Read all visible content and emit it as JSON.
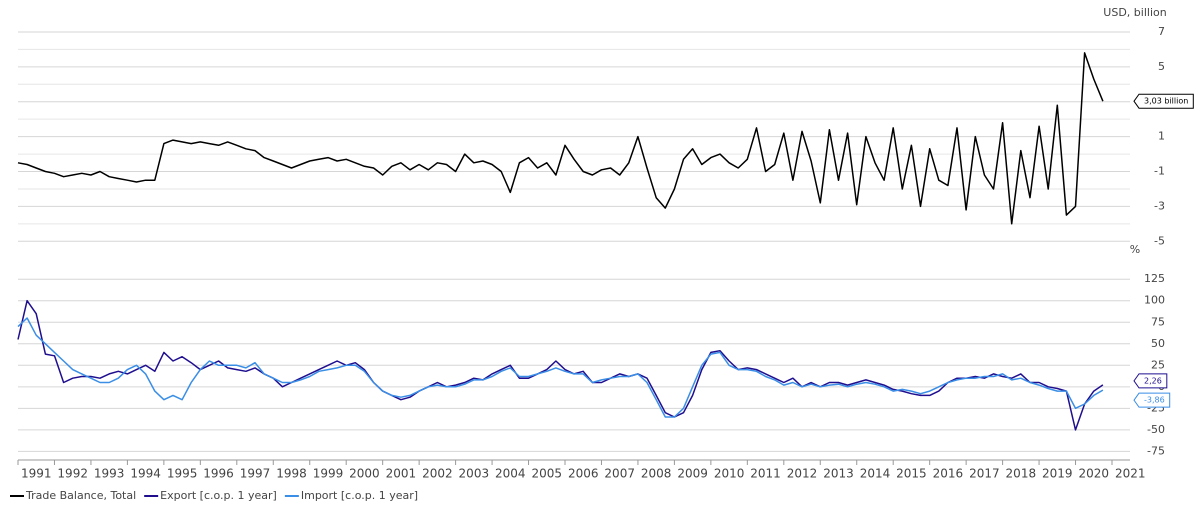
{
  "chart_data": [
    {
      "type": "line",
      "y_unit": "USD, billion",
      "x": [
        1991,
        1991.25,
        1991.5,
        1991.75,
        1992,
        1992.25,
        1992.5,
        1992.75,
        1993,
        1993.25,
        1993.5,
        1993.75,
        1994,
        1994.25,
        1994.5,
        1994.75,
        1995,
        1995.25,
        1995.5,
        1995.75,
        1996,
        1996.25,
        1996.5,
        1996.75,
        1997,
        1997.25,
        1997.5,
        1997.75,
        1998,
        1998.25,
        1998.5,
        1998.75,
        1999,
        1999.25,
        1999.5,
        1999.75,
        2000,
        2000.25,
        2000.5,
        2000.75,
        2001,
        2001.25,
        2001.5,
        2001.75,
        2002,
        2002.25,
        2002.5,
        2002.75,
        2003,
        2003.25,
        2003.5,
        2003.75,
        2004,
        2004.25,
        2004.5,
        2004.75,
        2005,
        2005.25,
        2005.5,
        2005.75,
        2006,
        2006.25,
        2006.5,
        2006.75,
        2007,
        2007.25,
        2007.5,
        2007.75,
        2008,
        2008.25,
        2008.5,
        2008.75,
        2009,
        2009.25,
        2009.5,
        2009.75,
        2010,
        2010.25,
        2010.5,
        2010.75,
        2011,
        2011.25,
        2011.5,
        2011.75,
        2012,
        2012.25,
        2012.5,
        2012.75,
        2013,
        2013.25,
        2013.5,
        2013.75,
        2014,
        2014.25,
        2014.5,
        2014.75,
        2015,
        2015.25,
        2015.5,
        2015.75,
        2016,
        2016.25,
        2016.5,
        2016.75,
        2017,
        2017.25,
        2017.5,
        2017.75,
        2018,
        2018.25,
        2018.5,
        2018.75,
        2019,
        2019.25,
        2019.5,
        2019.75,
        2020,
        2020.25,
        2020.5,
        2020.75
      ],
      "xlim": [
        1991,
        2021
      ],
      "ylim": [
        -5.5,
        7.4
      ],
      "yticks": [
        -5,
        -3,
        -1,
        1,
        3,
        5,
        7
      ],
      "grid": true,
      "series": [
        {
          "name": "Trade Balance, Total",
          "color": "#000000",
          "last_value_label": "3,03 billion",
          "values": [
            -0.5,
            -0.6,
            -0.8,
            -1.0,
            -1.1,
            -1.3,
            -1.2,
            -1.1,
            -1.2,
            -1.0,
            -1.3,
            -1.4,
            -1.5,
            -1.6,
            -1.5,
            -1.5,
            0.6,
            0.8,
            0.7,
            0.6,
            0.7,
            0.6,
            0.5,
            0.7,
            0.5,
            0.3,
            0.2,
            -0.2,
            -0.4,
            -0.6,
            -0.8,
            -0.6,
            -0.4,
            -0.3,
            -0.2,
            -0.4,
            -0.3,
            -0.5,
            -0.7,
            -0.8,
            -1.2,
            -0.7,
            -0.5,
            -0.9,
            -0.6,
            -0.9,
            -0.5,
            -0.6,
            -1.0,
            0.0,
            -0.5,
            -0.4,
            -0.6,
            -1.0,
            -2.2,
            -0.5,
            -0.2,
            -0.8,
            -0.5,
            -1.2,
            0.5,
            -0.3,
            -1.0,
            -1.2,
            -0.9,
            -0.8,
            -1.2,
            -0.5,
            1.0,
            -0.8,
            -2.5,
            -3.1,
            -2.0,
            -0.3,
            0.3,
            -0.6,
            -0.2,
            0.0,
            -0.5,
            -0.8,
            -0.3,
            1.5,
            -1.0,
            -0.6,
            1.2,
            -1.5,
            1.3,
            -0.4,
            -2.8,
            1.4,
            -1.5,
            1.2,
            -2.9,
            1.0,
            -0.5,
            -1.5,
            1.5,
            -2.0,
            0.5,
            -3.0,
            0.3,
            -1.5,
            -1.8,
            1.5,
            -3.2,
            1.0,
            -1.2,
            -2.0,
            1.8,
            -4.0,
            0.2,
            -2.5,
            1.6,
            -2.0,
            2.8,
            -3.5,
            -3.0,
            5.8,
            4.3,
            3.03
          ]
        }
      ]
    },
    {
      "type": "line",
      "y_unit": "%",
      "x": [
        1991,
        1991.25,
        1991.5,
        1991.75,
        1992,
        1992.25,
        1992.5,
        1992.75,
        1993,
        1993.25,
        1993.5,
        1993.75,
        1994,
        1994.25,
        1994.5,
        1994.75,
        1995,
        1995.25,
        1995.5,
        1995.75,
        1996,
        1996.25,
        1996.5,
        1996.75,
        1997,
        1997.25,
        1997.5,
        1997.75,
        1998,
        1998.25,
        1998.5,
        1998.75,
        1999,
        1999.25,
        1999.5,
        1999.75,
        2000,
        2000.25,
        2000.5,
        2000.75,
        2001,
        2001.25,
        2001.5,
        2001.75,
        2002,
        2002.25,
        2002.5,
        2002.75,
        2003,
        2003.25,
        2003.5,
        2003.75,
        2004,
        2004.25,
        2004.5,
        2004.75,
        2005,
        2005.25,
        2005.5,
        2005.75,
        2006,
        2006.25,
        2006.5,
        2006.75,
        2007,
        2007.25,
        2007.5,
        2007.75,
        2008,
        2008.25,
        2008.5,
        2008.75,
        2009,
        2009.25,
        2009.5,
        2009.75,
        2010,
        2010.25,
        2010.5,
        2010.75,
        2011,
        2011.25,
        2011.5,
        2011.75,
        2012,
        2012.25,
        2012.5,
        2012.75,
        2013,
        2013.25,
        2013.5,
        2013.75,
        2014,
        2014.25,
        2014.5,
        2014.75,
        2015,
        2015.25,
        2015.5,
        2015.75,
        2016,
        2016.25,
        2016.5,
        2016.75,
        2017,
        2017.25,
        2017.5,
        2017.75,
        2018,
        2018.25,
        2018.5,
        2018.75,
        2019,
        2019.25,
        2019.5,
        2019.75,
        2020,
        2020.25,
        2020.5,
        2020.75
      ],
      "xlim": [
        1991,
        2021
      ],
      "xticks": [
        1991,
        1992,
        1993,
        1994,
        1995,
        1996,
        1997,
        1998,
        1999,
        2000,
        2001,
        2002,
        2003,
        2004,
        2005,
        2006,
        2007,
        2008,
        2009,
        2010,
        2011,
        2012,
        2013,
        2014,
        2015,
        2016,
        2017,
        2018,
        2019,
        2020,
        2021
      ],
      "ylim": [
        -85,
        145
      ],
      "yticks": [
        -75,
        -50,
        -25,
        0,
        25,
        50,
        75,
        100,
        125
      ],
      "grid": true,
      "series": [
        {
          "name": "Export [c.o.p. 1 year]",
          "color": "#1f0f8f",
          "last_value_label": "2,26",
          "values": [
            55,
            100,
            85,
            38,
            36,
            5,
            10,
            12,
            12,
            10,
            15,
            18,
            15,
            20,
            25,
            18,
            40,
            30,
            35,
            28,
            20,
            25,
            30,
            22,
            20,
            18,
            22,
            15,
            10,
            0,
            5,
            10,
            15,
            20,
            25,
            30,
            25,
            28,
            20,
            5,
            -5,
            -10,
            -15,
            -12,
            -5,
            0,
            5,
            0,
            2,
            5,
            10,
            8,
            15,
            20,
            25,
            10,
            10,
            15,
            20,
            30,
            20,
            15,
            18,
            5,
            5,
            10,
            15,
            12,
            15,
            10,
            -10,
            -30,
            -35,
            -30,
            -10,
            20,
            40,
            42,
            30,
            20,
            22,
            20,
            15,
            10,
            5,
            10,
            0,
            5,
            0,
            5,
            5,
            2,
            5,
            8,
            5,
            2,
            -3,
            -5,
            -8,
            -10,
            -10,
            -5,
            5,
            10,
            10,
            12,
            10,
            15,
            12,
            10,
            15,
            5,
            5,
            0,
            -2,
            -5,
            -50,
            -20,
            -5,
            2.26
          ]
        },
        {
          "name": "Import [c.o.p. 1 year]",
          "color": "#3a8ee6",
          "last_value_label": "-3,86",
          "values": [
            70,
            80,
            60,
            50,
            40,
            30,
            20,
            15,
            10,
            5,
            5,
            10,
            20,
            25,
            15,
            -5,
            -15,
            -10,
            -15,
            5,
            20,
            30,
            25,
            25,
            25,
            22,
            28,
            15,
            10,
            5,
            5,
            8,
            12,
            18,
            20,
            22,
            25,
            25,
            18,
            5,
            -5,
            -10,
            -12,
            -10,
            -5,
            0,
            2,
            0,
            0,
            3,
            8,
            8,
            12,
            18,
            22,
            12,
            12,
            15,
            18,
            22,
            18,
            15,
            15,
            5,
            8,
            10,
            12,
            12,
            15,
            5,
            -15,
            -35,
            -35,
            -25,
            0,
            25,
            38,
            40,
            25,
            20,
            20,
            18,
            12,
            8,
            2,
            5,
            0,
            3,
            0,
            2,
            3,
            0,
            3,
            5,
            3,
            0,
            -5,
            -3,
            -5,
            -8,
            -5,
            0,
            5,
            8,
            10,
            10,
            12,
            12,
            15,
            8,
            10,
            5,
            2,
            -2,
            -5,
            -5,
            -25,
            -20,
            -10,
            -3.86
          ]
        }
      ]
    }
  ]
}
